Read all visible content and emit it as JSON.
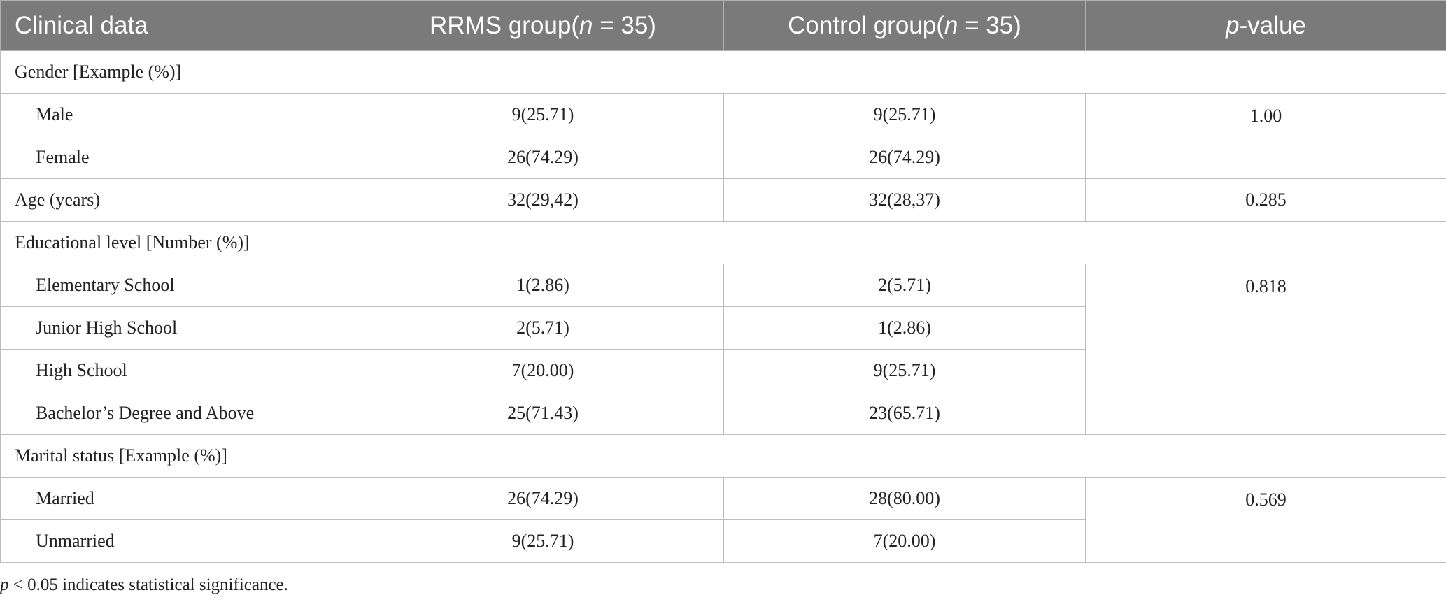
{
  "header": {
    "col1": "Clinical data",
    "col2_pre": "RRMS group(",
    "col2_n": "n",
    "col2_post": " = 35)",
    "col3_pre": "Control group(",
    "col3_n": "n",
    "col3_post": " = 35)",
    "col4_p": "p",
    "col4_post": "-value"
  },
  "sections": {
    "gender": {
      "title": "Gender [Example (%)]",
      "p_value": "1.00",
      "rows": [
        {
          "label": "Male",
          "rrms": "9(25.71)",
          "control": "9(25.71)"
        },
        {
          "label": "Female",
          "rrms": "26(74.29)",
          "control": "26(74.29)"
        }
      ]
    },
    "age": {
      "label": "Age (years)",
      "rrms": "32(29,42)",
      "control": "32(28,37)",
      "p_value": "0.285"
    },
    "education": {
      "title": "Educational level [Number (%)]",
      "p_value": "0.818",
      "rows": [
        {
          "label": "Elementary School",
          "rrms": "1(2.86)",
          "control": "2(5.71)"
        },
        {
          "label": "Junior High School",
          "rrms": "2(5.71)",
          "control": "1(2.86)"
        },
        {
          "label": "High School",
          "rrms": "7(20.00)",
          "control": "9(25.71)"
        },
        {
          "label": "Bachelor’s Degree and Above",
          "rrms": "25(71.43)",
          "control": "23(65.71)"
        }
      ]
    },
    "marital": {
      "title": "Marital status [Example (%)]",
      "p_value": "0.569",
      "rows": [
        {
          "label": "Married",
          "rrms": "26(74.29)",
          "control": "28(80.00)"
        },
        {
          "label": "Unmarried",
          "rrms": "9(25.71)",
          "control": "7(20.00)"
        }
      ]
    }
  },
  "footnote": {
    "p": "p",
    "text": " < 0.05 indicates statistical significance."
  }
}
